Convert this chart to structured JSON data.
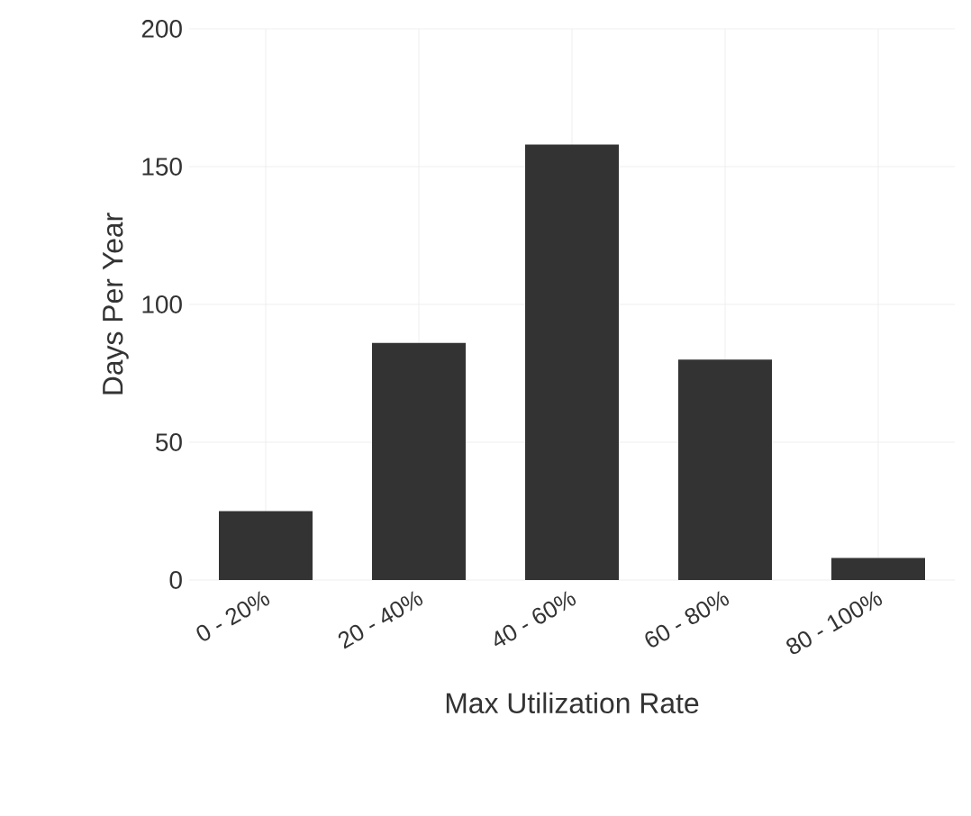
{
  "chart_data": {
    "type": "bar",
    "xlabel": "Max Utilization Rate",
    "ylabel": "Days Per Year",
    "categories": [
      "0 - 20%",
      "20 - 40%",
      "40 - 60%",
      "60 - 80%",
      "80 - 100%"
    ],
    "values": [
      25,
      86,
      158,
      80,
      8
    ],
    "color": "#333333",
    "ylim": [
      0,
      200
    ],
    "yticks": [
      0,
      50,
      100,
      150,
      200
    ],
    "grid": true
  }
}
